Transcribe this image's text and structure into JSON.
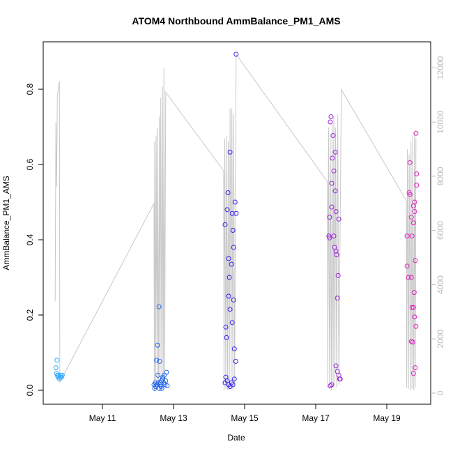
{
  "chart_data": {
    "type": "scatter",
    "title": "ATOM4 Northbound AmmBalance_PM1_AMS",
    "xlabel": "Date",
    "ylabel": "AmmBalance_PM1_AMS",
    "xlim": [
      9.333,
      20.235
    ],
    "xticks": [
      {
        "value": 11,
        "label": "May 11"
      },
      {
        "value": 13,
        "label": "May 13"
      },
      {
        "value": 15,
        "label": "May 15"
      },
      {
        "value": 17,
        "label": "May 17"
      },
      {
        "value": 19,
        "label": "May 19"
      }
    ],
    "ylim": [
      -0.037,
      0.926
    ],
    "yticks": [
      {
        "value": 0,
        "label": "0.0"
      },
      0.2,
      0.4,
      0.6,
      0.8
    ],
    "y2lim": [
      -411,
      12960
    ],
    "y2ticks": [
      0,
      2000,
      4000,
      6000,
      8000,
      10000,
      12000
    ],
    "y2color": "#bbbbbb",
    "series": [
      {
        "style": "line",
        "axis": "y2",
        "color": "#c8c8c8",
        "x": [
          9.67,
          9.69,
          9.71,
          9.73,
          9.76,
          9.79,
          9.8,
          12.45,
          12.46,
          12.47,
          12.5,
          12.51,
          12.54,
          12.55,
          12.58,
          12.6,
          12.62,
          12.64,
          12.67,
          12.69,
          12.71,
          12.73,
          12.75,
          12.78,
          14.41,
          14.42,
          14.44,
          14.47,
          14.49,
          14.52,
          14.54,
          14.57,
          14.59,
          14.62,
          14.64,
          14.67,
          14.69,
          14.72,
          14.76,
          17.33,
          17.34,
          17.36,
          17.39,
          17.41,
          17.44,
          17.46,
          17.49,
          17.51,
          17.54,
          17.56,
          17.59,
          17.62,
          17.65,
          17.72,
          19.55,
          19.56,
          19.58,
          19.61,
          19.63,
          19.66,
          19.68,
          19.71,
          19.73,
          19.76,
          19.78,
          19.8,
          19.82
        ],
        "values": [
          3400,
          10000,
          7600,
          10900,
          11300,
          11500,
          400,
          7000,
          100,
          9300,
          150,
          9500,
          100,
          9800,
          200,
          10200,
          150,
          10900,
          300,
          11300,
          200,
          12000,
          400,
          11100,
          8200,
          100,
          9400,
          150,
          9500,
          100,
          9300,
          150,
          10500,
          200,
          10500,
          100,
          10300,
          200,
          12500,
          7800,
          200,
          9800,
          150,
          9500,
          100,
          10000,
          200,
          10200,
          300,
          9800,
          200,
          10300,
          300,
          11200,
          7100,
          200,
          9000,
          150,
          8800,
          100,
          9300,
          150,
          9500,
          100,
          9600,
          200,
          9400
        ]
      },
      {
        "style": "points",
        "color": "#33aaff",
        "x": [
          9.69,
          9.71,
          9.72,
          9.73,
          9.75,
          9.77,
          9.79,
          9.81,
          9.83,
          9.85,
          9.87
        ],
        "values": [
          0.06,
          0.045,
          0.08,
          0.04,
          0.035,
          0.04,
          0.03,
          0.035,
          0.04,
          0.035,
          0.04
        ]
      },
      {
        "style": "points",
        "color": "#2266ee",
        "x": [
          12.45,
          12.47,
          12.49,
          12.5,
          12.52,
          12.53,
          12.55,
          12.56,
          12.57,
          12.59,
          12.6,
          12.61,
          12.62,
          12.63,
          12.65,
          12.66,
          12.67,
          12.69,
          12.7,
          12.72,
          12.74,
          12.76,
          12.78,
          12.8,
          12.82
        ],
        "values": [
          0.015,
          0.005,
          0.02,
          0.01,
          0.08,
          0.015,
          0.12,
          0.04,
          0.02,
          0.222,
          0.005,
          0.077,
          0.015,
          0.02,
          0.01,
          0.025,
          0.005,
          0.03,
          0.035,
          0.02,
          0.04,
          0.015,
          0.025,
          0.048,
          0.012
        ]
      },
      {
        "style": "points",
        "color": "#3322ee",
        "x": [
          14.45,
          14.47,
          14.49,
          14.51,
          14.53,
          14.55,
          14.55,
          14.57,
          14.59,
          14.59,
          14.63,
          14.65,
          14.65,
          14.67,
          14.69,
          14.69,
          14.71,
          14.73,
          14.75,
          14.76,
          14.76,
          14.45,
          14.47,
          14.51,
          14.55,
          14.59,
          14.63,
          14.67,
          14.71
        ],
        "values": [
          0.44,
          0.168,
          0.14,
          0.48,
          0.525,
          0.35,
          0.25,
          0.3,
          0.633,
          0.215,
          0.335,
          0.47,
          0.18,
          0.425,
          0.38,
          0.24,
          0.11,
          0.5,
          0.077,
          0.893,
          0.47,
          0.02,
          0.035,
          0.025,
          0.015,
          0.01,
          0.02,
          0.015,
          0.03
        ]
      },
      {
        "style": "points",
        "color": "#9922dd",
        "x": [
          17.43,
          17.41,
          17.49,
          17.55,
          17.47,
          17.51,
          17.45,
          17.55,
          17.45,
          17.57,
          17.39,
          17.65,
          17.37,
          17.39,
          17.51,
          17.53,
          17.57,
          17.59,
          17.63,
          17.61,
          17.57,
          17.61,
          17.65,
          17.41,
          17.45,
          17.67,
          17.69
        ],
        "values": [
          0.727,
          0.713,
          0.677,
          0.633,
          0.617,
          0.583,
          0.55,
          0.53,
          0.487,
          0.475,
          0.46,
          0.455,
          0.41,
          0.405,
          0.41,
          0.38,
          0.37,
          0.36,
          0.305,
          0.245,
          0.065,
          0.05,
          0.04,
          0.012,
          0.015,
          0.03,
          0.03
        ]
      },
      {
        "style": "points",
        "color": "#dd22bb",
        "x": [
          19.82,
          19.65,
          19.84,
          19.84,
          19.63,
          19.65,
          19.78,
          19.75,
          19.78,
          19.69,
          19.75,
          19.57,
          19.71,
          19.8,
          19.57,
          19.61,
          19.69,
          19.77,
          19.71,
          19.75,
          19.78,
          19.82,
          19.69,
          19.73,
          19.8,
          19.75
        ],
        "values": [
          0.683,
          0.605,
          0.575,
          0.545,
          0.525,
          0.52,
          0.5,
          0.49,
          0.475,
          0.46,
          0.445,
          0.41,
          0.41,
          0.345,
          0.33,
          0.3,
          0.3,
          0.26,
          0.22,
          0.22,
          0.195,
          0.17,
          0.13,
          0.128,
          0.06,
          0.045
        ]
      }
    ]
  }
}
